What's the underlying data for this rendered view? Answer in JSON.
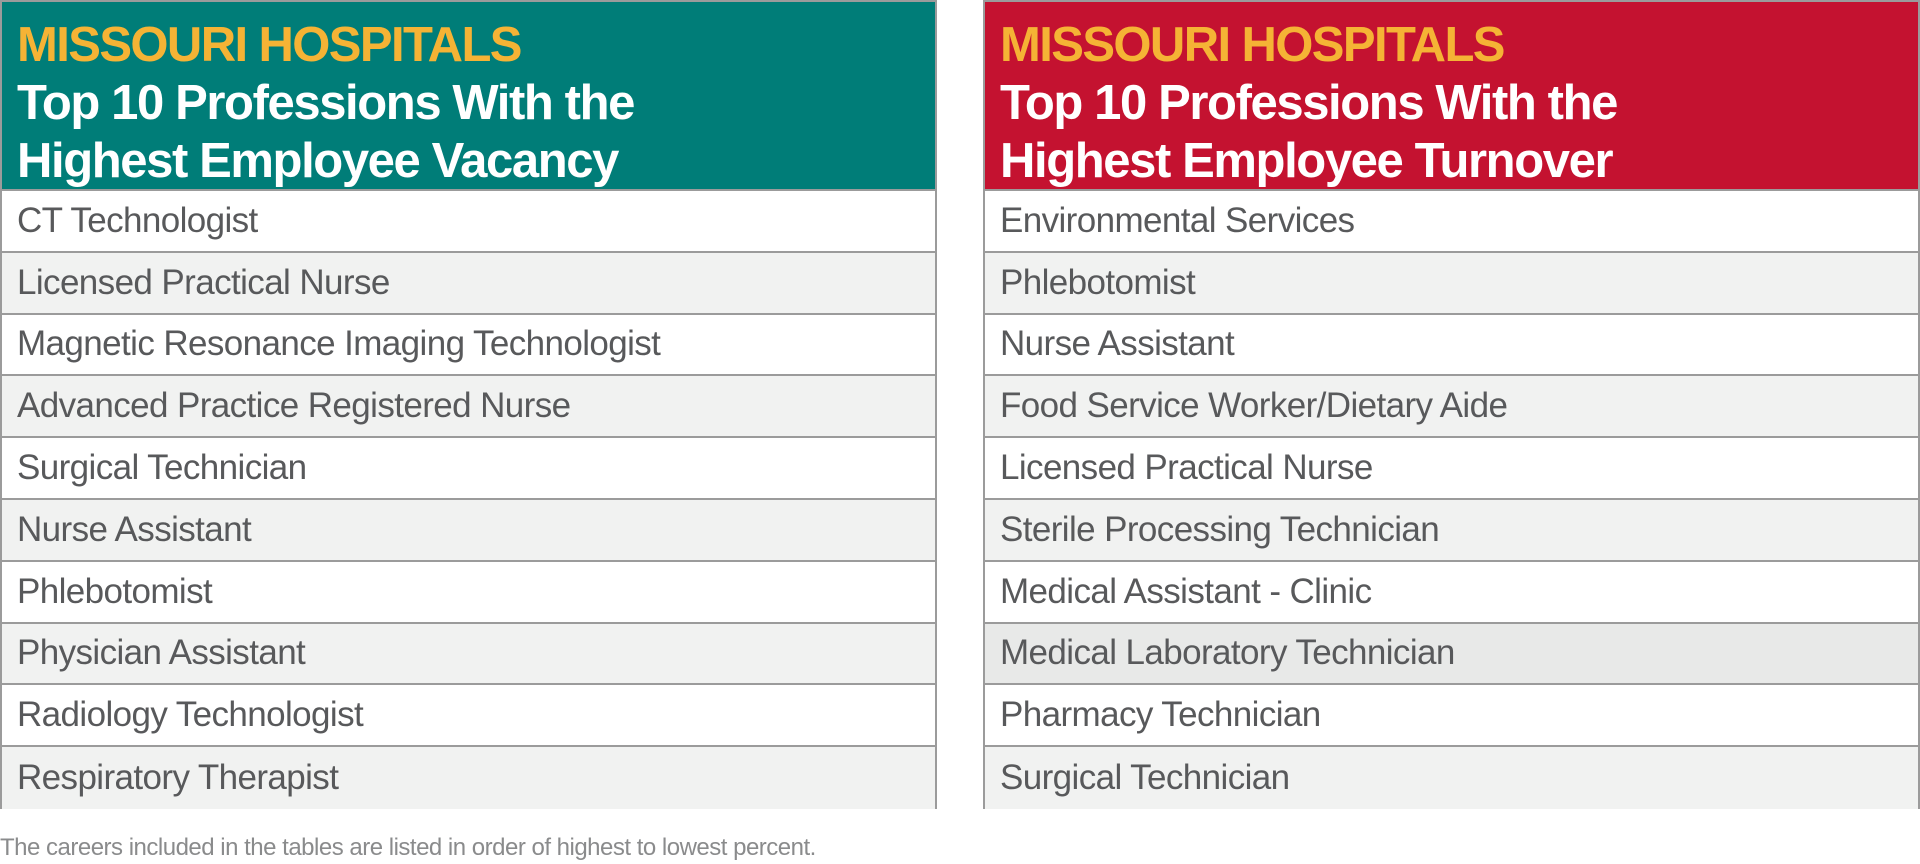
{
  "colors": {
    "vacancy_header_bg": "#007d78",
    "turnover_header_bg": "#c41230",
    "kicker_text": "#f5b335",
    "title_text": "#ffffff",
    "row_text": "#58595b",
    "row_alt_bg": "#f1f2f1",
    "row_highlight_bg": "#e8e9e8",
    "border": "#9b9b9b",
    "footnote_text": "#8a8b8c"
  },
  "vacancy_table": {
    "kicker": "MISSOURI HOSPITALS",
    "title_line1": "Top 10 Professions With the",
    "title_line2": "Highest Employee Vacancy",
    "items": [
      "CT Technologist",
      "Licensed Practical Nurse",
      "Magnetic Resonance Imaging Technologist",
      "Advanced Practice Registered Nurse",
      "Surgical Technician",
      "Nurse Assistant",
      "Phlebotomist",
      "Physician Assistant",
      "Radiology Technologist",
      "Respiratory Therapist"
    ]
  },
  "turnover_table": {
    "kicker": "MISSOURI HOSPITALS",
    "title_line1": "Top 10 Professions With the",
    "title_line2": "Highest Employee Turnover",
    "items": [
      "Environmental Services",
      "Phlebotomist",
      "Nurse Assistant",
      "Food Service Worker/Dietary Aide",
      "Licensed Practical Nurse",
      "Sterile Processing Technician",
      "Medical Assistant - Clinic",
      "Medical Laboratory Technician",
      "Pharmacy Technician",
      "Surgical Technician"
    ]
  },
  "footnote": "The careers included in the tables are listed in order of highest to lowest percent."
}
